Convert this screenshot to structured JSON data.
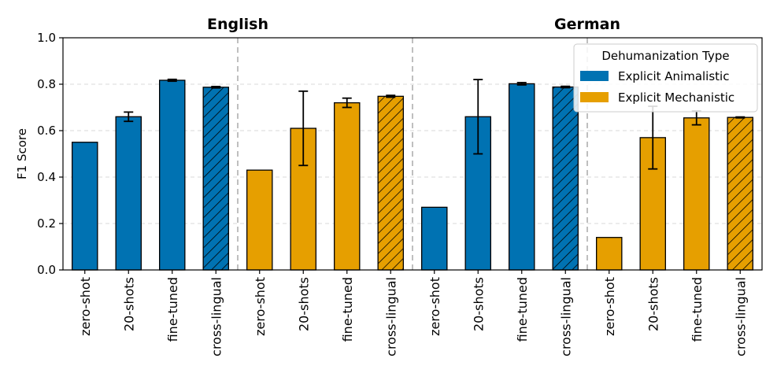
{
  "chart_data": {
    "type": "bar",
    "ylabel": "F1 Score",
    "xlabel": "",
    "ylim": [
      0,
      1.0
    ],
    "yticks": [
      "0.0",
      "0.2",
      "0.4",
      "0.6",
      "0.8",
      "1.0"
    ],
    "grid": "horizontal-dashed",
    "legend": {
      "title": "Dehumanization Type",
      "placement": "top-right",
      "entries": [
        {
          "label": "Explicit Animalistic",
          "color": "#0072B2"
        },
        {
          "label": "Explicit Mechanistic",
          "color": "#E69F00"
        }
      ]
    },
    "groups": [
      {
        "title": "English",
        "series": [
          {
            "type": "Explicit Animalistic",
            "color": "#0072B2",
            "bars": [
              {
                "setting": "zero-shot",
                "value": 0.55,
                "err": 0.0,
                "hatch": false
              },
              {
                "setting": "20-shots",
                "value": 0.66,
                "err": 0.02,
                "hatch": false
              },
              {
                "setting": "fine-tuned",
                "value": 0.817,
                "err": 0.004,
                "hatch": false
              },
              {
                "setting": "cross-lingual",
                "value": 0.787,
                "err": 0.003,
                "hatch": true
              }
            ]
          },
          {
            "type": "Explicit Mechanistic",
            "color": "#E69F00",
            "bars": [
              {
                "setting": "zero-shot",
                "value": 0.43,
                "err": 0.0,
                "hatch": false
              },
              {
                "setting": "20-shots",
                "value": 0.61,
                "err": 0.16,
                "hatch": false
              },
              {
                "setting": "fine-tuned",
                "value": 0.72,
                "err": 0.02,
                "hatch": false
              },
              {
                "setting": "cross-lingual",
                "value": 0.748,
                "err": 0.004,
                "hatch": true
              }
            ]
          }
        ]
      },
      {
        "title": "German",
        "series": [
          {
            "type": "Explicit Animalistic",
            "color": "#0072B2",
            "bars": [
              {
                "setting": "zero-shot",
                "value": 0.27,
                "err": 0.0,
                "hatch": false
              },
              {
                "setting": "20-shots",
                "value": 0.66,
                "err": 0.16,
                "hatch": false
              },
              {
                "setting": "fine-tuned",
                "value": 0.802,
                "err": 0.005,
                "hatch": false
              },
              {
                "setting": "cross-lingual",
                "value": 0.788,
                "err": 0.003,
                "hatch": true
              }
            ]
          },
          {
            "type": "Explicit Mechanistic",
            "color": "#E69F00",
            "bars": [
              {
                "setting": "zero-shot",
                "value": 0.14,
                "err": 0.0,
                "hatch": false
              },
              {
                "setting": "20-shots",
                "value": 0.57,
                "err": 0.135,
                "hatch": false
              },
              {
                "setting": "fine-tuned",
                "value": 0.655,
                "err": 0.03,
                "hatch": false
              },
              {
                "setting": "cross-lingual",
                "value": 0.657,
                "err": 0.002,
                "hatch": true
              }
            ]
          }
        ]
      }
    ]
  }
}
